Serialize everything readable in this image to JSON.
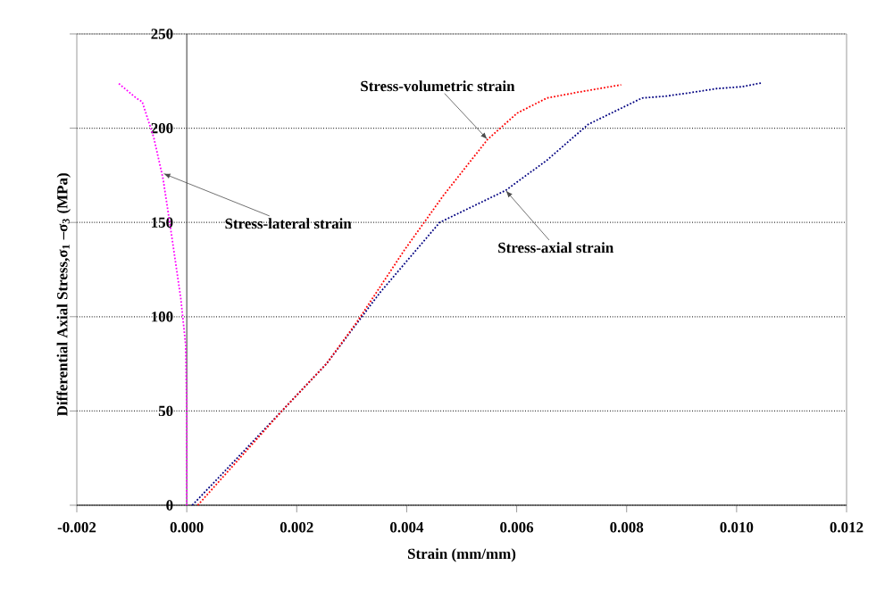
{
  "chart_data": {
    "type": "line",
    "xlabel": "Strain (mm/mm)",
    "ylabel": "Differential Axial Stress,σ$_{1}$ –σ$_{3}$ (MPa)",
    "xlim": [
      -0.002,
      0.012
    ],
    "ylim": [
      0,
      250
    ],
    "xticks": [
      {
        "value": -0.002,
        "label": "-0.002"
      },
      {
        "value": 0,
        "label": "0.000"
      },
      {
        "value": 0.002,
        "label": "0.002"
      },
      {
        "value": 0.004,
        "label": "0.004"
      },
      {
        "value": 0.006,
        "label": "0.006"
      },
      {
        "value": 0.008,
        "label": "0.008"
      },
      {
        "value": 0.01,
        "label": "0.010"
      },
      {
        "value": 0.012,
        "label": "0.012"
      }
    ],
    "yticks": [
      0,
      50,
      100,
      150,
      200,
      250
    ],
    "grid": "y",
    "line_style": "dotted",
    "series": [
      {
        "color": "#000080",
        "x": [
          0.0001,
          0.00173,
          0.00254,
          0.00352,
          0.0046,
          0.0058,
          0.00655,
          0.0073,
          0.00828,
          0.00872,
          0.0092,
          0.00964,
          0.0101,
          0.01045
        ],
        "values": [
          0,
          50,
          75,
          113,
          150,
          167,
          183,
          202,
          216,
          217,
          219,
          221,
          222,
          224
        ]
      },
      {
        "color": "#ff0000",
        "x": [
          0.0002,
          0.00173,
          0.00254,
          0.00309,
          0.00395,
          0.00466,
          0.00547,
          0.00601,
          0.00655,
          0.0071,
          0.0079
        ],
        "values": [
          0,
          50,
          75,
          97,
          135,
          164,
          194,
          208,
          216,
          219,
          223
        ]
      },
      {
        "color": "#ff00ff",
        "x": [
          0,
          0,
          -2e-05,
          -0.00011,
          -0.00027,
          -0.00043,
          -0.0006,
          -0.00081,
          -0.00092,
          -0.00125
        ],
        "values": [
          0,
          50,
          85,
          110,
          142,
          173,
          195,
          214,
          216,
          224
        ]
      }
    ],
    "annotations": [
      {
        "text": "Stress-volumetric strain",
        "x": 0.00547,
        "y": 194
      },
      {
        "text": "Stress-axial strain",
        "x": 0.0058,
        "y": 167
      },
      {
        "text": "Stress-lateral strain",
        "x": -0.00043,
        "y": 176
      }
    ]
  }
}
